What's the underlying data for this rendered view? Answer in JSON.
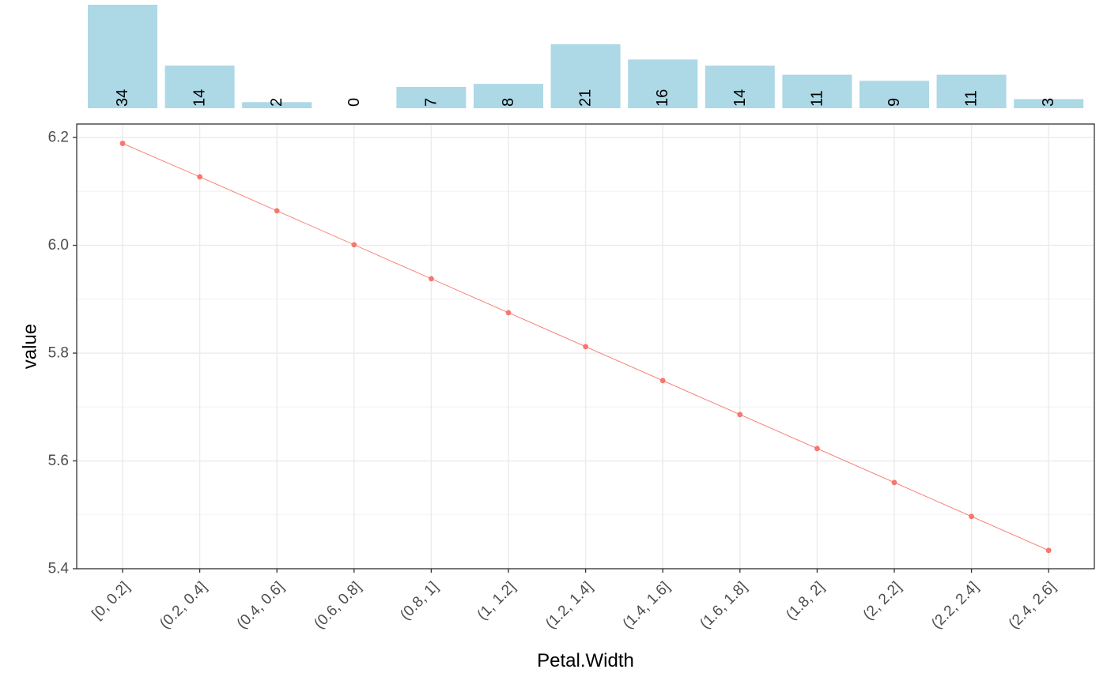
{
  "chart_data": [
    {
      "type": "bar",
      "categories": [
        "[0, 0.2]",
        "(0.2, 0.4]",
        "(0.4, 0.6]",
        "(0.6, 0.8]",
        "(0.8, 1]",
        "(1, 1.2]",
        "(1.2, 1.4]",
        "(1.4, 1.6]",
        "(1.6, 1.8]",
        "(1.8, 2]",
        "(2, 2.2]",
        "(2.2, 2.4]",
        "(2.4, 2.6]"
      ],
      "values": [
        34,
        14,
        2,
        0,
        7,
        8,
        21,
        16,
        14,
        11,
        9,
        11,
        3
      ],
      "data_labels": [
        "34",
        "14",
        "2",
        "0",
        "7",
        "8",
        "21",
        "16",
        "14",
        "11",
        "9",
        "11",
        "3"
      ],
      "bar_color": "#add8e6"
    },
    {
      "type": "line",
      "categories": [
        "[0, 0.2]",
        "(0.2, 0.4]",
        "(0.4, 0.6]",
        "(0.6, 0.8]",
        "(0.8, 1]",
        "(1, 1.2]",
        "(1.2, 1.4]",
        "(1.4, 1.6]",
        "(1.6, 1.8]",
        "(1.8, 2]",
        "(2, 2.2]",
        "(2.2, 2.4]",
        "(2.4, 2.6]"
      ],
      "series": [
        {
          "values": [
            6.189,
            6.127,
            6.064,
            6.001,
            5.938,
            5.875,
            5.812,
            5.749,
            5.686,
            5.623,
            5.56,
            5.497,
            5.434
          ],
          "color": "#f8766d"
        }
      ],
      "xlabel": "Petal.Width",
      "ylabel": "value",
      "ylim": [
        5.4,
        6.225
      ],
      "yticks": [
        5.4,
        5.6,
        5.8,
        6.0,
        6.2
      ],
      "ytick_labels": [
        "5.4",
        "5.6",
        "5.8",
        "6.0",
        "6.2"
      ],
      "grid": true,
      "legend": "none"
    }
  ]
}
